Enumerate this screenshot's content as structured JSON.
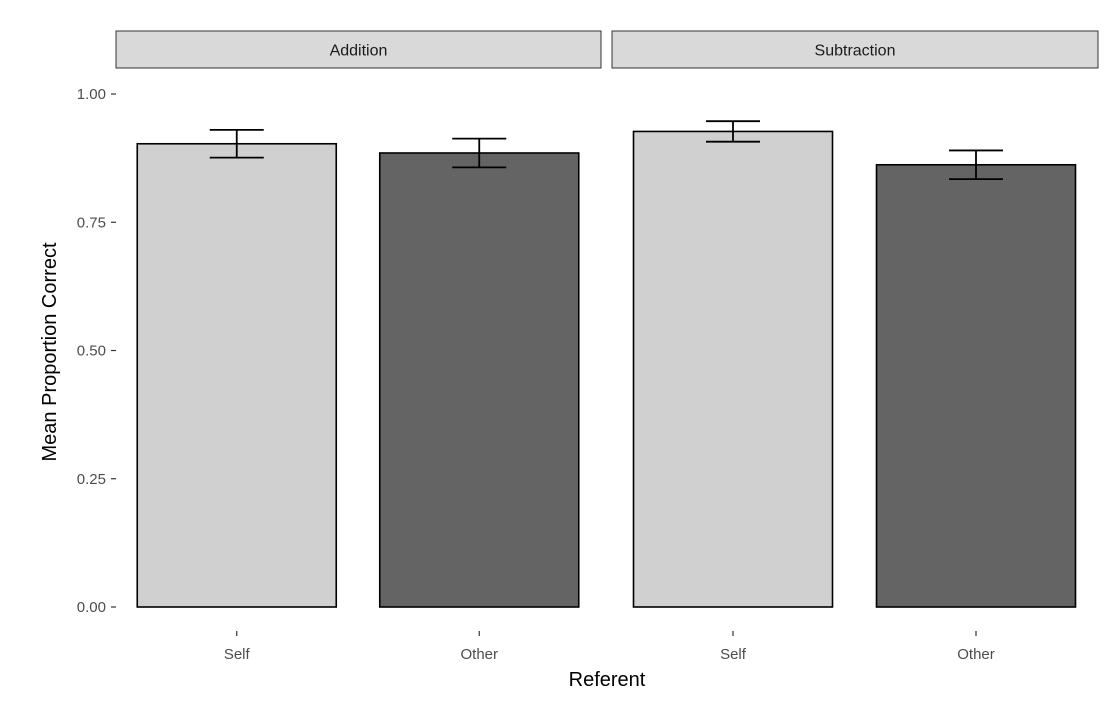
{
  "chart_data": {
    "type": "bar",
    "facets": [
      {
        "label": "Addition",
        "categories": [
          "Self",
          "Other"
        ],
        "values": [
          0.903,
          0.885
        ],
        "error_low": [
          0.876,
          0.857
        ],
        "error_high": [
          0.93,
          0.913
        ],
        "fill_colors": [
          "#d0d0d0",
          "#646464"
        ]
      },
      {
        "label": "Subtraction",
        "categories": [
          "Self",
          "Other"
        ],
        "values": [
          0.927,
          0.862
        ],
        "error_low": [
          0.907,
          0.834
        ],
        "error_high": [
          0.947,
          0.89
        ],
        "fill_colors": [
          "#d0d0d0",
          "#646464"
        ]
      }
    ],
    "xlabel": "Referent",
    "ylabel": "Mean Proportion Correct",
    "yticks": [
      "0.00",
      "0.25",
      "0.50",
      "0.75",
      "1.00"
    ],
    "ylim": [
      0,
      1
    ],
    "grid": false,
    "legend": "none"
  }
}
